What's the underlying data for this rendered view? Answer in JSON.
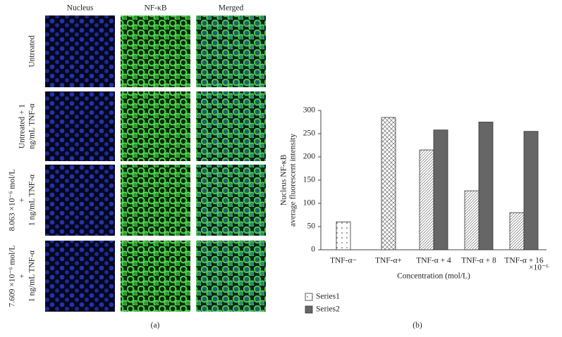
{
  "panel_a": {
    "columns": [
      "Nucleus",
      "NF-κB",
      "Merged"
    ],
    "rows": [
      {
        "label": [
          "Untreated"
        ]
      },
      {
        "label": [
          "Untreated + 1",
          "ng/mL TNF-α"
        ]
      },
      {
        "label": [
          "8.063 ×10⁻⁶ mol/L",
          "+",
          "1 ng/mL TNF-α"
        ]
      },
      {
        "label": [
          "7.609 ×10⁻⁶ mol/L",
          "+",
          "1 ng/mL TNF-α"
        ]
      }
    ],
    "caption": "(a)"
  },
  "chart_data": {
    "type": "bar",
    "y_label": [
      "Nucleus NF-κB",
      "average fluorescent intensity"
    ],
    "x_label": "Concentration (mol/L)",
    "annotation": "×10⁻⁶",
    "caption": "(b)",
    "categories": [
      "TNF-α−",
      "TNF-α+",
      "TNF-α + 4",
      "TNF-α + 8",
      "TNF-α + 16"
    ],
    "series": [
      {
        "name": "Series1",
        "color": "#ffffff",
        "patterns": [
          "dots",
          "crosshatch",
          "diagonal",
          "diagonal",
          "diagonal"
        ],
        "values": [
          60,
          285,
          215,
          127,
          80
        ]
      },
      {
        "name": "Series2",
        "color": "#666666",
        "values": [
          null,
          null,
          258,
          275,
          255
        ]
      }
    ],
    "ylim": [
      0,
      300
    ],
    "yticks": [
      0,
      50,
      100,
      150,
      200,
      250,
      300
    ],
    "grid": false
  }
}
